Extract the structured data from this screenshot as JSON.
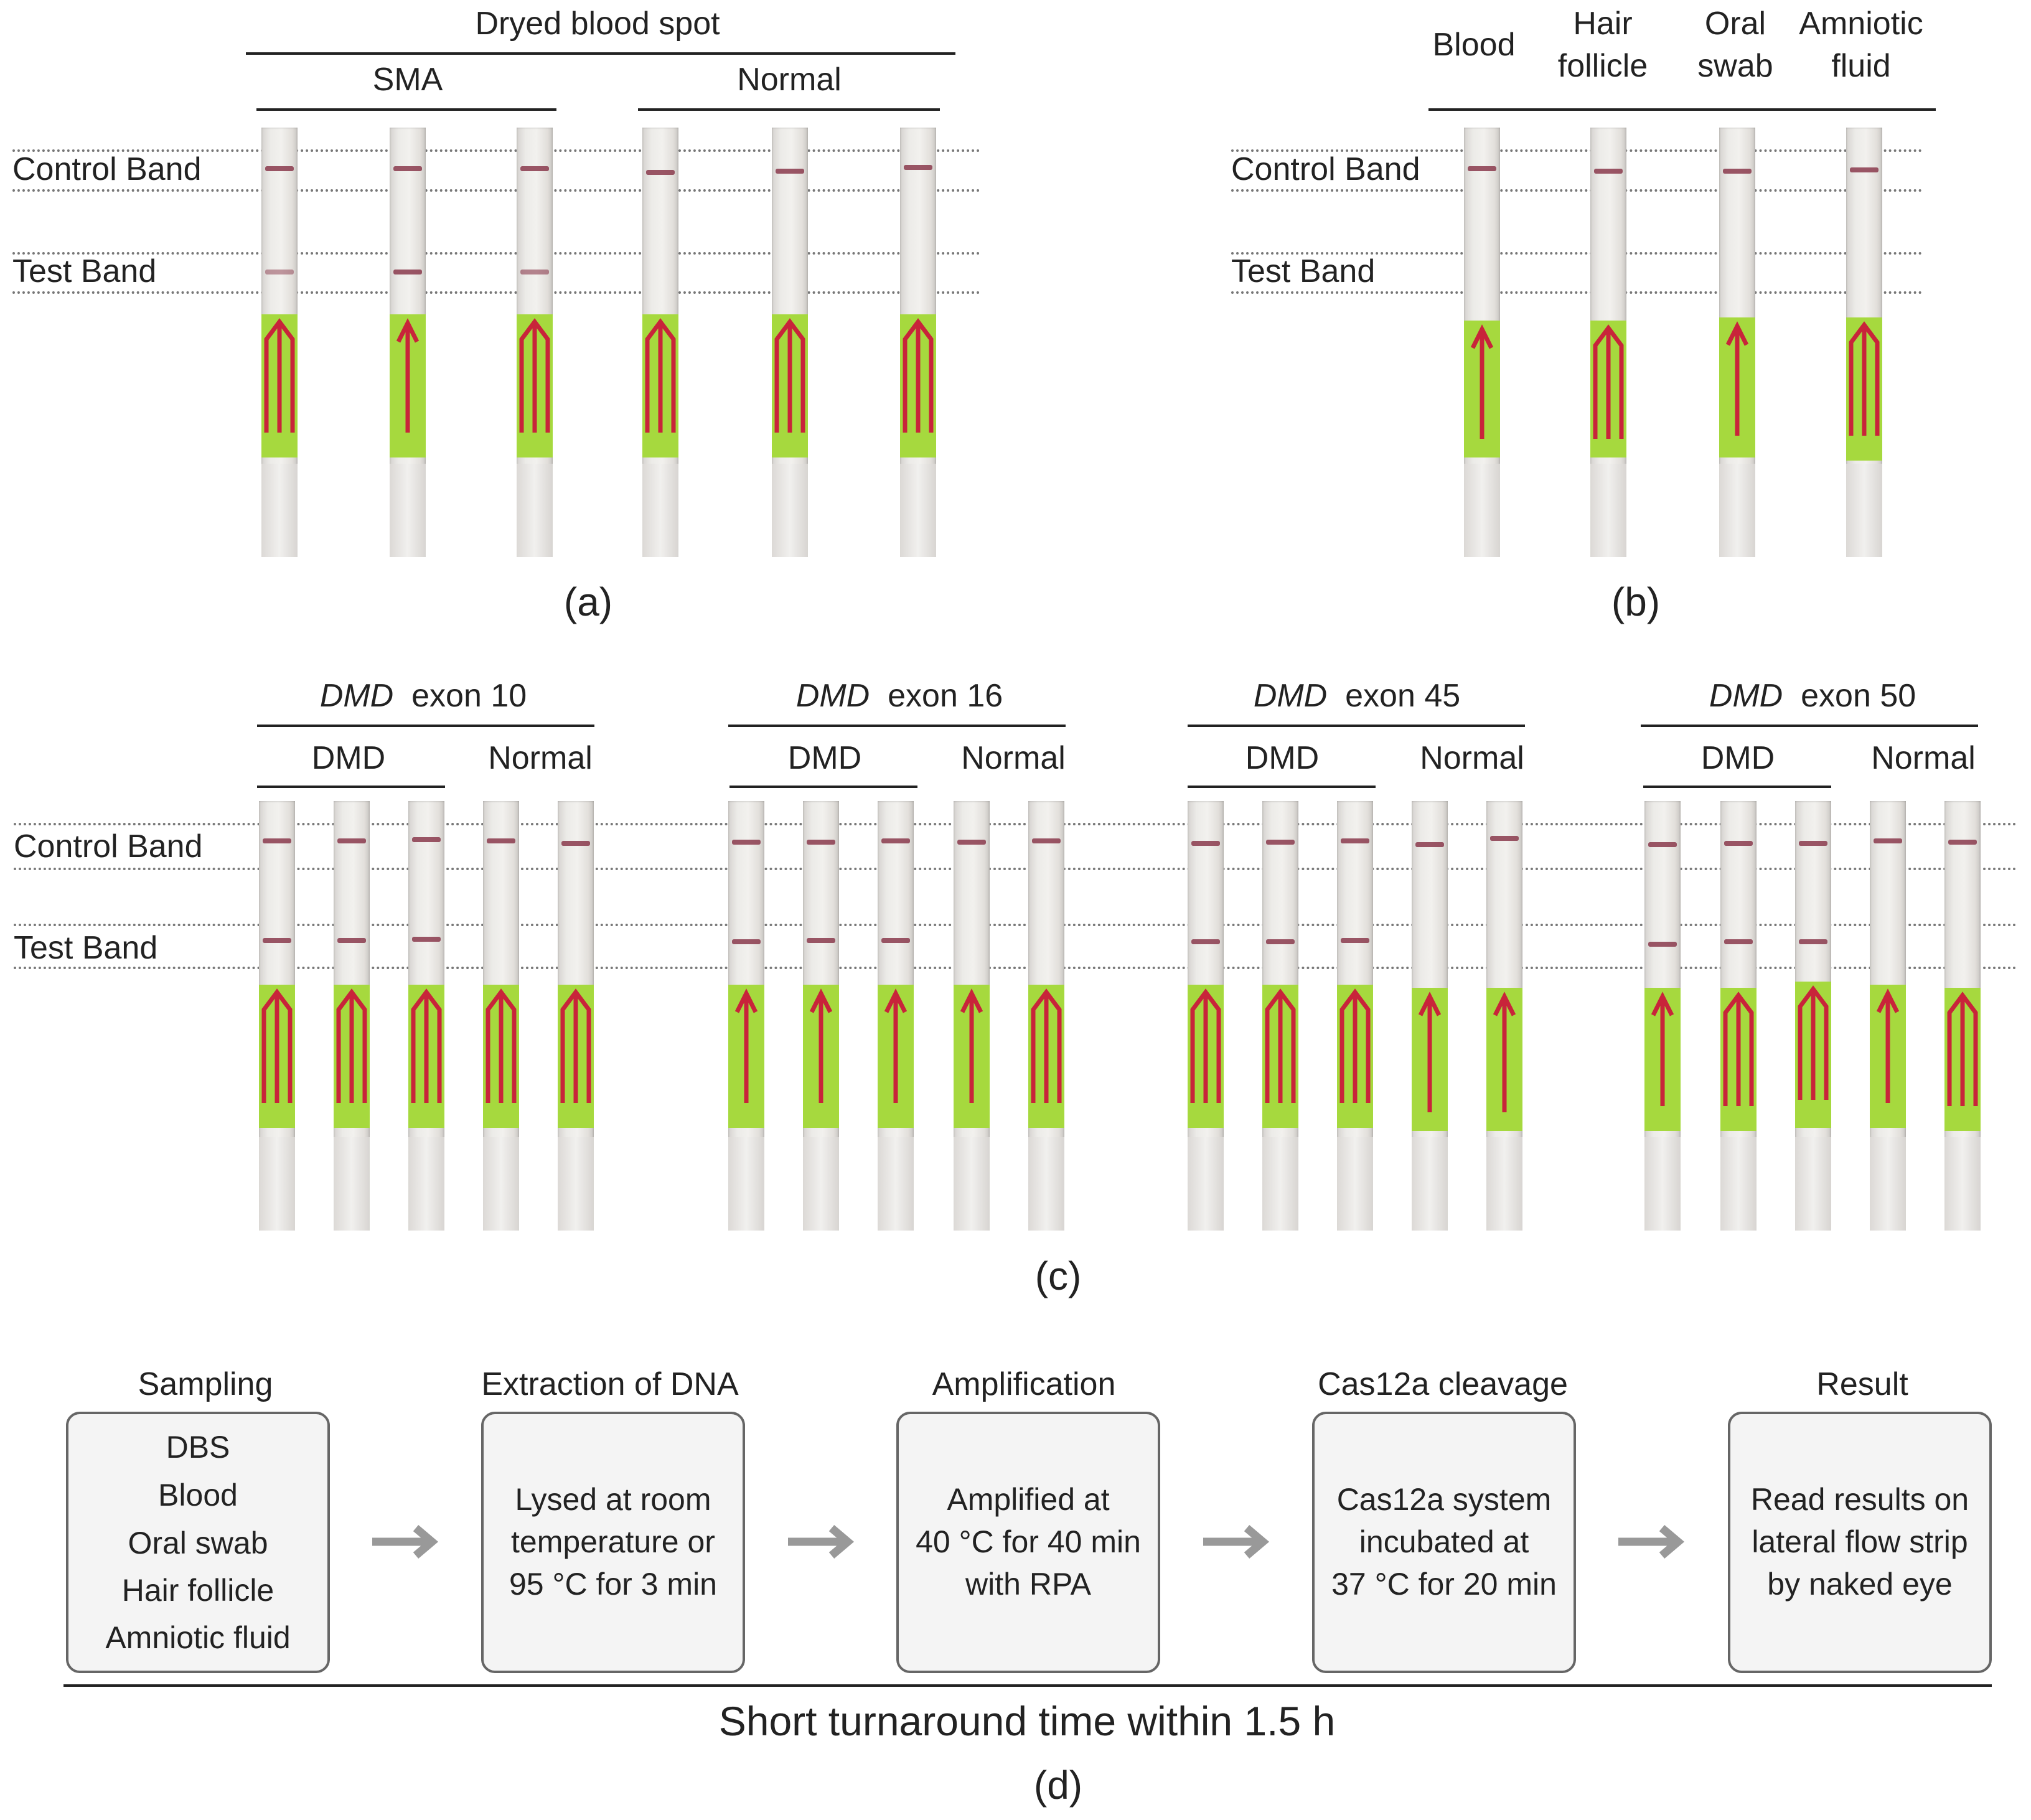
{
  "panel_a": {
    "header": "Dryed blood spot",
    "groups": [
      "SMA",
      "Normal"
    ],
    "band_labels": {
      "control": "Control Band",
      "test": "Test Band"
    },
    "label": "(a)"
  },
  "panel_b": {
    "columns": [
      {
        "line1": "Blood",
        "line2": ""
      },
      {
        "line1": "Hair",
        "line2": "follicle"
      },
      {
        "line1": "Oral",
        "line2": "swab"
      },
      {
        "line1": "Amniotic",
        "line2": "fluid"
      }
    ],
    "band_labels": {
      "control": "Control Band",
      "test": "Test Band"
    },
    "label": "(b)"
  },
  "panel_c": {
    "gene_italic": "DMD",
    "exons": [
      "exon 10",
      "exon 16",
      "exon 45",
      "exon 50"
    ],
    "groups": [
      "DMD",
      "Normal"
    ],
    "band_labels": {
      "control": "Control Band",
      "test": "Test Band"
    },
    "label": "(c)"
  },
  "panel_d": {
    "steps": [
      {
        "title": "Sampling",
        "lines": [
          "DBS",
          "Blood",
          "Oral swab",
          "Hair follicle",
          "Amniotic fluid"
        ]
      },
      {
        "title": "Extraction of DNA",
        "lines": [
          "Lysed at room",
          "temperature or",
          "95 °C for 3 min"
        ]
      },
      {
        "title": "Amplification",
        "lines": [
          "Amplified at",
          "40 °C for 40 min",
          "with RPA"
        ]
      },
      {
        "title": "Cas12a cleavage",
        "lines": [
          "Cas12a system",
          "incubated at",
          "37 °C for 20 min"
        ]
      },
      {
        "title": "Result",
        "lines": [
          "Read results on",
          "lateral flow strip",
          "by naked eye"
        ]
      }
    ],
    "footer": "Short turnaround time within 1.5 h",
    "label": "(d)"
  }
}
